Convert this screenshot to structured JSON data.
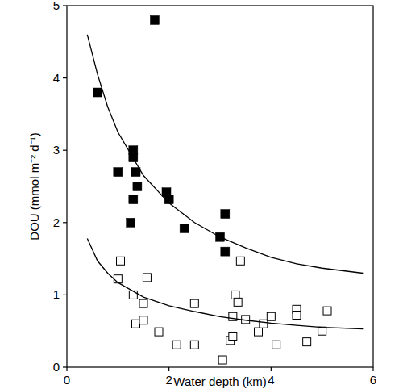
{
  "chart_data": {
    "type": "scatter",
    "x_label": "Water depth (km)",
    "y_label": "DOU (mmol m⁻² d⁻¹)",
    "xlim": [
      0,
      6
    ],
    "ylim": [
      0,
      5
    ],
    "xticks": [
      0,
      2,
      4,
      6
    ],
    "yticks": [
      0,
      1,
      2,
      3,
      4,
      5
    ],
    "grid": false,
    "series": [
      {
        "type": "scatter",
        "marker": "filled-square",
        "color": "#000000",
        "x": [
          0.6,
          1.0,
          1.25,
          1.3,
          1.3,
          1.3,
          1.35,
          1.38,
          1.72,
          1.95,
          2.0,
          2.3,
          3.0,
          3.1,
          3.1
        ],
        "values": [
          3.8,
          2.7,
          2.0,
          3.0,
          2.9,
          2.32,
          2.7,
          2.5,
          4.8,
          2.42,
          2.32,
          1.92,
          1.8,
          2.12,
          1.6
        ]
      },
      {
        "type": "scatter",
        "marker": "open-square",
        "color": "#000000",
        "x": [
          1.0,
          1.05,
          1.3,
          1.35,
          1.5,
          1.5,
          1.57,
          1.8,
          2.15,
          2.5,
          2.5,
          3.05,
          3.2,
          3.25,
          3.25,
          3.3,
          3.35,
          3.4,
          3.5,
          3.75,
          3.85,
          4.0,
          4.1,
          4.5,
          4.5,
          4.7,
          5.0,
          5.1
        ],
        "values": [
          1.22,
          1.47,
          1.0,
          0.6,
          0.88,
          0.65,
          1.24,
          0.49,
          0.31,
          0.31,
          0.88,
          0.1,
          0.37,
          0.43,
          0.7,
          1.0,
          0.9,
          1.47,
          0.66,
          0.49,
          0.6,
          0.7,
          0.31,
          0.8,
          0.72,
          0.35,
          0.5,
          0.78
        ]
      },
      {
        "type": "line",
        "line_style": "solid",
        "color": "#000000",
        "x": [
          0.4,
          0.6,
          0.8,
          1.0,
          1.5,
          2.0,
          2.5,
          3.0,
          3.5,
          4.0,
          4.5,
          5.0,
          5.8
        ],
        "values": [
          4.6,
          4.05,
          3.6,
          3.25,
          2.65,
          2.27,
          2.0,
          1.8,
          1.65,
          1.52,
          1.43,
          1.37,
          1.3
        ]
      },
      {
        "type": "line",
        "line_style": "solid",
        "color": "#000000",
        "x": [
          0.4,
          0.6,
          0.8,
          1.0,
          1.5,
          2.0,
          2.5,
          3.0,
          3.5,
          4.0,
          4.5,
          5.0,
          5.8
        ],
        "values": [
          1.78,
          1.47,
          1.3,
          1.17,
          0.97,
          0.85,
          0.77,
          0.7,
          0.65,
          0.61,
          0.58,
          0.55,
          0.53
        ]
      }
    ]
  }
}
